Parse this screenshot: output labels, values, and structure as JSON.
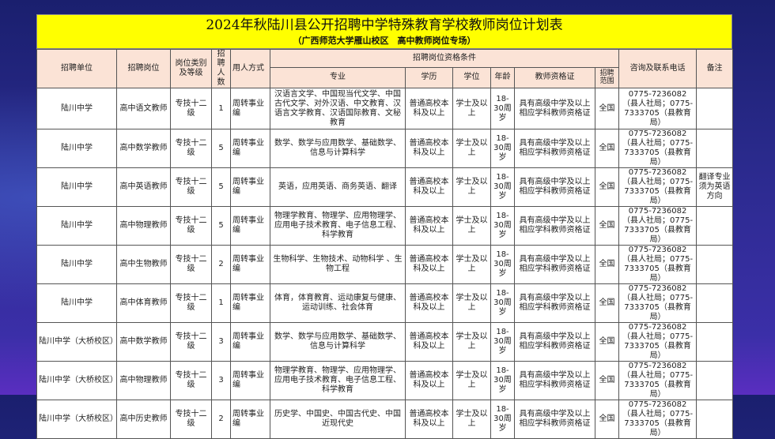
{
  "title": "2024年秋陆川县公开招聘中学特殊教育学校教师岗位计划表",
  "subtitle": "（广西师范大学雁山校区　高中教师岗位专场）",
  "headers": {
    "unit": "招聘单位",
    "post": "招聘岗位",
    "category": "岗位类别及等级",
    "count": "招聘人数",
    "method": "用人方式",
    "conditions": "招聘岗位资格条件",
    "major": "专业",
    "education": "学历",
    "degree": "学位",
    "age": "年龄",
    "certificate": "教师资格证",
    "scope": "招聘范围",
    "contact": "咨询及联系电话",
    "remark": "备注"
  },
  "rows": [
    {
      "unit": "陆川中学",
      "post": "高中语文教师",
      "category": "专技十二级",
      "count": "1",
      "method": "周转事业编",
      "major": "汉语言文学、中国现当代文学、中国古代文学、对外汉语、中文教育、汉语言文学教育、汉语国际教育、文秘教育",
      "education": "普通高校本科及以上",
      "degree": "学士及以上",
      "age": "18-30周岁",
      "certificate": "具有高级中学及以上相应学科教师资格证",
      "scope": "全国",
      "contact": "0775-7236082（县人社局；0775-7333705（县教育局）",
      "remark": ""
    },
    {
      "unit": "陆川中学",
      "post": "高中数学教师",
      "category": "专技十二级",
      "count": "5",
      "method": "周转事业编",
      "major": "数学、数学与应用数学、基础数学、信息与计算科学",
      "education": "普通高校本科及以上",
      "degree": "学士及以上",
      "age": "18-30周岁",
      "certificate": "具有高级中学及以上相应学科教师资格证",
      "scope": "全国",
      "contact": "0775-7236082（县人社局；0775-7333705（县教育局）",
      "remark": ""
    },
    {
      "unit": "陆川中学",
      "post": "高中英语教师",
      "category": "专技十二级",
      "count": "5",
      "method": "周转事业编",
      "major": "英语，应用英语、商务英语、翻译",
      "education": "普通高校本科及以上",
      "degree": "学士及以上",
      "age": "18-30周岁",
      "certificate": "具有高级中学及以上相应学科教师资格证",
      "scope": "全国",
      "contact": "0775-7236082（县人社局；0775-7333705（县教育局）",
      "remark": "翻译专业须为英语方向"
    },
    {
      "unit": "陆川中学",
      "post": "高中物理教师",
      "category": "专技十二级",
      "count": "5",
      "method": "周转事业编",
      "major": "物理学教育、物理学、应用物理学、应用电子技术教育、电子信息工程、科学教育",
      "education": "普通高校本科及以上",
      "degree": "学士及以上",
      "age": "18-30周岁",
      "certificate": "具有高级中学及以上相应学科教师资格证",
      "scope": "全国",
      "contact": "0775-7236082（县人社局；0775-7333705（县教育局）",
      "remark": ""
    },
    {
      "unit": "陆川中学",
      "post": "高中生物教师",
      "category": "专技十二级",
      "count": "2",
      "method": "周转事业编",
      "major": "生物科学、生物技术、动物科学 、生物工程",
      "education": "普通高校本科及以上",
      "degree": "学士及以上",
      "age": "18-30周岁",
      "certificate": "具有高级中学及以上相应学科教师资格证",
      "scope": "全国",
      "contact": "0775-7236082（县人社局；0775-7333705（县教育局）",
      "remark": ""
    },
    {
      "unit": "陆川中学",
      "post": "高中体育教师",
      "category": "专技十二级",
      "count": "1",
      "method": "周转事业编",
      "major": "体育，体育教育、运动康复与健康、运动训练、社会体育",
      "education": "普通高校本科及以上",
      "degree": "学士及以上",
      "age": "18-30周岁",
      "certificate": "具有高级中学及以上相应学科教师资格证",
      "scope": "全国",
      "contact": "0775-7236082（县人社局；0775-7333705（县教育局）",
      "remark": ""
    },
    {
      "unit": "陆川中学（大桥校区）",
      "post": "高中数学教师",
      "category": "专技十二级",
      "count": "3",
      "method": "周转事业编",
      "major": "数学、数学与应用数学、基础数学、信息与计算科学",
      "education": "普通高校本科及以上",
      "degree": "学士及以上",
      "age": "18-30周岁",
      "certificate": "具有高级中学及以上相应学科教师资格证",
      "scope": "全国",
      "contact": "0775-7236082（县人社局；0775-7333705（县教育局）",
      "remark": ""
    },
    {
      "unit": "陆川中学（大桥校区）",
      "post": "高中物理教师",
      "category": "专技十二级",
      "count": "3",
      "method": "周转事业编",
      "major": "物理学教育、物理学、应用物理学、应用电子技术教育、电子信息工程、科学教育",
      "education": "普通高校本科及以上",
      "degree": "学士及以上",
      "age": "18-30周岁",
      "certificate": "具有高级中学及以上相应学科教师资格证",
      "scope": "全国",
      "contact": "0775-7236082（县人社局；0775-7333705（县教育局）",
      "remark": ""
    },
    {
      "unit": "陆川中学（大桥校区）",
      "post": "高中历史教师",
      "category": "专技十二级",
      "count": "2",
      "method": "周转事业编",
      "major": "历史学、中国史、中国古代史、中国近现代史",
      "education": "普通高校本科及以上",
      "degree": "学士及以上",
      "age": "18-30周岁",
      "certificate": "具有高级中学及以上相应学科教师资格证",
      "scope": "全国",
      "contact": "0775-7236082（县人社局；0775-7333705（县教育局）",
      "remark": ""
    }
  ]
}
